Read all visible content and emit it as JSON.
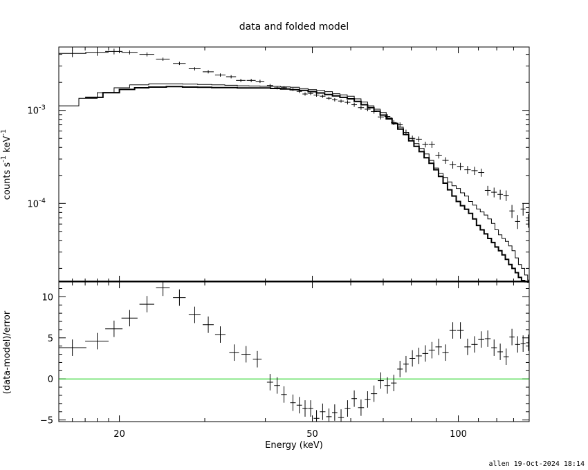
{
  "title": "data and folded model",
  "footer": "allen 19-Oct-2024 18:14",
  "colors": {
    "zero_line": "#00cc00",
    "ink": "#000000"
  },
  "chart_data": [
    {
      "type": "line",
      "panel": "top",
      "xlabel": "Energy (keV)",
      "ylabel": "counts s",
      "ylabel_sup": "-1",
      "ylabel_unit": "keV",
      "ylabel_unit_sup": "-1",
      "xscale": "log",
      "yscale": "log",
      "xlim": [
        15,
        140
      ],
      "ylim": [
        1.43e-05,
        0.0048
      ],
      "yticks": [
        {
          "label_base": "10",
          "label_exp": "-3",
          "value": 0.001
        },
        {
          "label_base": "10",
          "label_exp": "-4",
          "value": 0.0001
        }
      ],
      "data_points": {
        "x": [
          16,
          18,
          19.5,
          21,
          22.8,
          24.6,
          26.6,
          28.6,
          30.5,
          32.3,
          34,
          35.6,
          37.4,
          39,
          40.9,
          42.3,
          43.7,
          45.6,
          47,
          48.3,
          49.6,
          51,
          52.5,
          54.1,
          55.6,
          57.3,
          59.1,
          61,
          63,
          65,
          67,
          69.2,
          71.4,
          73.6,
          75.8,
          78,
          80.4,
          82.9,
          85.5,
          88.2,
          91.1,
          94.1,
          97.4,
          101,
          104.5,
          108,
          111.5,
          115,
          118.5,
          122,
          125.5,
          129,
          132.5,
          136,
          139.5
        ],
        "y": [
          0.0041,
          0.0042,
          0.0043,
          0.0042,
          0.004,
          0.00355,
          0.0032,
          0.0028,
          0.0026,
          0.0024,
          0.0023,
          0.0021,
          0.0021,
          0.00205,
          0.00185,
          0.00175,
          0.00175,
          0.00168,
          0.0016,
          0.0015,
          0.00152,
          0.00146,
          0.00142,
          0.00135,
          0.0013,
          0.00126,
          0.00122,
          0.00115,
          0.00107,
          0.00103,
          0.00097,
          0.00085,
          0.00086,
          0.00074,
          0.0007,
          0.00058,
          0.0005,
          0.00049,
          0.00043,
          0.00043,
          0.00033,
          0.00029,
          0.00026,
          0.00025,
          0.00023,
          0.000225,
          0.000215,
          0.000138,
          0.000132,
          0.000125,
          0.000122,
          8.3e-05,
          6.4e-05,
          8.7e-05,
          6.6e-05
        ],
        "xerr": [
          1.1,
          1.0,
          0.8,
          0.8,
          0.8,
          0.8,
          0.8,
          0.8,
          0.8,
          0.8,
          0.8,
          0.8,
          0.8,
          0.8,
          0.6,
          0.6,
          0.6,
          0.6,
          0.6,
          0.6,
          0.6,
          0.7,
          0.7,
          0.7,
          0.7,
          0.8,
          0.8,
          0.8,
          0.9,
          0.9,
          1.0,
          1.0,
          1.0,
          1.0,
          1.0,
          1.0,
          1.1,
          1.2,
          1.2,
          1.3,
          1.4,
          1.4,
          1.5,
          1.6,
          1.6,
          1.6,
          1.6,
          1.6,
          1.6,
          1.6,
          1.6,
          1.6,
          1.6,
          1.6,
          1.6
        ],
        "yerr_frac": [
          0.09,
          0.08,
          0.07,
          0.05,
          0.05,
          0.04,
          0.04,
          0.04,
          0.04,
          0.04,
          0.04,
          0.04,
          0.04,
          0.04,
          0.04,
          0.04,
          0.04,
          0.04,
          0.04,
          0.04,
          0.04,
          0.04,
          0.04,
          0.04,
          0.04,
          0.04,
          0.05,
          0.05,
          0.05,
          0.05,
          0.05,
          0.06,
          0.06,
          0.06,
          0.06,
          0.07,
          0.07,
          0.07,
          0.07,
          0.08,
          0.08,
          0.08,
          0.09,
          0.09,
          0.1,
          0.1,
          0.1,
          0.12,
          0.12,
          0.12,
          0.13,
          0.16,
          0.17,
          0.15,
          0.17
        ]
      },
      "model_thin": {
        "edges": [
          15,
          16.5,
          18,
          19.5,
          21,
          23,
          25,
          27,
          29,
          31,
          33,
          35,
          37,
          39,
          41,
          43,
          45,
          47,
          49,
          51,
          53,
          55,
          57,
          59,
          61,
          63,
          65,
          67,
          69,
          71,
          73,
          75,
          77,
          79,
          81,
          83,
          85,
          87,
          89,
          91,
          93,
          95,
          97,
          99,
          101,
          103,
          105,
          107,
          109,
          111,
          113,
          115,
          117,
          119,
          121,
          123,
          125,
          127,
          129,
          131,
          133,
          135,
          137,
          139,
          140
        ],
        "y": [
          0.00112,
          0.00135,
          0.00155,
          0.00175,
          0.00188,
          0.00193,
          0.00193,
          0.00192,
          0.0019,
          0.00188,
          0.00186,
          0.00184,
          0.00183,
          0.00182,
          0.00181,
          0.00179,
          0.00177,
          0.00171,
          0.00167,
          0.00164,
          0.00159,
          0.00151,
          0.00147,
          0.00142,
          0.00133,
          0.00123,
          0.00112,
          0.00103,
          0.00095,
          0.00083,
          0.00073,
          0.00066,
          0.00058,
          0.0005,
          0.00044,
          0.00039,
          0.00034,
          0.00029,
          0.00024,
          0.00021,
          0.00019,
          0.00017,
          0.000155,
          0.000145,
          0.00013,
          0.00012,
          0.000105,
          9.6e-05,
          8.7e-05,
          8.1e-05,
          7.5e-05,
          6.8e-05,
          6.1e-05,
          5.2e-05,
          4.6e-05,
          4.2e-05,
          3.9e-05,
          3.5e-05,
          3.1e-05,
          2.6e-05,
          2.2e-05,
          2e-05,
          1.7e-05,
          1.5e-05
        ]
      },
      "model_thick": {
        "edges": [
          17,
          18.5,
          20,
          21.5,
          23,
          25,
          27,
          29,
          31,
          33,
          35,
          37,
          39,
          41,
          43,
          45,
          47,
          49,
          51,
          53,
          55,
          57,
          59,
          61,
          63,
          65,
          67,
          69,
          71,
          73,
          75,
          77,
          79,
          81,
          83,
          85,
          87,
          89,
          91,
          93,
          95,
          97,
          99,
          101,
          103,
          105,
          107,
          109,
          111,
          113,
          115,
          117,
          119,
          121,
          123,
          125,
          127,
          129,
          131,
          133,
          135,
          137,
          139,
          140
        ],
        "y": [
          0.00138,
          0.00155,
          0.00168,
          0.00175,
          0.00178,
          0.0018,
          0.00178,
          0.00177,
          0.00176,
          0.00176,
          0.00174,
          0.00174,
          0.00174,
          0.00172,
          0.0017,
          0.00167,
          0.00164,
          0.00159,
          0.00154,
          0.00148,
          0.00143,
          0.00138,
          0.00133,
          0.00125,
          0.00115,
          0.00107,
          0.00098,
          0.00089,
          0.00081,
          0.00072,
          0.00063,
          0.00055,
          0.00047,
          0.00041,
          0.00036,
          0.00031,
          0.00027,
          0.00023,
          0.000195,
          0.000165,
          0.00014,
          0.00012,
          0.000105,
          9.45e-05,
          8.65e-05,
          7.8e-05,
          6.8e-05,
          5.8e-05,
          5.2e-05,
          4.7e-05,
          4.2e-05,
          3.8e-05,
          3.4e-05,
          3.1e-05,
          2.8e-05,
          2.5e-05,
          2.2e-05,
          2e-05,
          1.8e-05,
          1.6e-05,
          1.48e-05,
          1.44e-05,
          1.43e-05
        ]
      }
    },
    {
      "type": "scatter",
      "panel": "bottom",
      "xlabel": "Energy (keV)",
      "ylabel": "(data-model)/error",
      "xscale": "log",
      "xlim": [
        15,
        140
      ],
      "ylim": [
        -5.2,
        11.8
      ],
      "yticks": [
        {
          "label": "10",
          "value": 10
        },
        {
          "label": "5",
          "value": 5
        },
        {
          "label": "0",
          "value": 0
        },
        {
          "label": "−5",
          "value": -5
        }
      ],
      "xticks": [
        {
          "label": "20",
          "value": 20
        },
        {
          "label": "50",
          "value": 50
        },
        {
          "label": "100",
          "value": 100
        }
      ],
      "zero_line": 0,
      "x": [
        16,
        18,
        19.5,
        21,
        22.8,
        24.6,
        26.6,
        28.6,
        30.5,
        32.3,
        34.5,
        36.5,
        38.5,
        40.9,
        42.3,
        43.7,
        45.6,
        47,
        48.3,
        49.6,
        51,
        52.5,
        54.1,
        55.6,
        57.3,
        59.1,
        61,
        63,
        65,
        67,
        69.2,
        71.4,
        73.6,
        75.8,
        78,
        80.4,
        82.9,
        85.5,
        88.2,
        91.1,
        94.1,
        97.4,
        101,
        104.5,
        108,
        111.5,
        115,
        118.5,
        122,
        125.5,
        129,
        132.5,
        136,
        139.5
      ],
      "y": [
        3.8,
        4.6,
        6.1,
        7.4,
        9.1,
        11.1,
        9.9,
        7.8,
        6.6,
        5.4,
        3.2,
        3.0,
        2.4,
        -0.4,
        -0.8,
        -1.9,
        -2.9,
        -3.2,
        -3.6,
        -3.6,
        -4.8,
        -4.0,
        -4.6,
        -4.1,
        -4.7,
        -3.6,
        -2.4,
        -3.5,
        -2.5,
        -1.8,
        -0.2,
        -0.8,
        -0.5,
        1.2,
        1.8,
        2.5,
        2.8,
        3.1,
        3.5,
        3.9,
        3.2,
        5.9,
        5.9,
        3.9,
        4.2,
        4.8,
        4.9,
        3.8,
        3.3,
        2.7,
        5.1,
        4.2,
        4.3,
        4.4
      ],
      "xerr": [
        1.1,
        1.0,
        0.8,
        0.8,
        0.8,
        0.8,
        0.8,
        0.8,
        0.8,
        0.8,
        0.8,
        0.8,
        0.8,
        0.6,
        0.6,
        0.6,
        0.6,
        0.6,
        0.6,
        0.6,
        0.7,
        0.7,
        0.7,
        0.7,
        0.8,
        0.8,
        0.8,
        0.9,
        0.9,
        1.0,
        1.0,
        1.0,
        1.0,
        1.0,
        1.0,
        1.1,
        1.2,
        1.2,
        1.3,
        1.4,
        1.4,
        1.5,
        1.6,
        1.6,
        1.6,
        1.6,
        1.6,
        1.6,
        1.6,
        1.6,
        1.6,
        1.6,
        1.6,
        1.6
      ],
      "yerr": [
        1.0,
        1.0,
        1.0,
        1.0,
        1.0,
        1.0,
        1.0,
        1.0,
        1.0,
        1.0,
        1.0,
        1.0,
        1.0,
        1.0,
        1.0,
        1.0,
        1.0,
        1.0,
        1.0,
        1.0,
        1.0,
        1.0,
        1.0,
        1.0,
        1.0,
        1.0,
        1.0,
        1.0,
        1.0,
        1.0,
        1.0,
        1.0,
        1.0,
        1.0,
        1.0,
        1.0,
        1.0,
        1.0,
        1.0,
        1.0,
        1.0,
        1.0,
        1.0,
        1.0,
        1.0,
        1.0,
        1.0,
        1.0,
        1.0,
        1.0,
        1.0,
        1.0,
        1.0,
        1.0
      ]
    }
  ]
}
